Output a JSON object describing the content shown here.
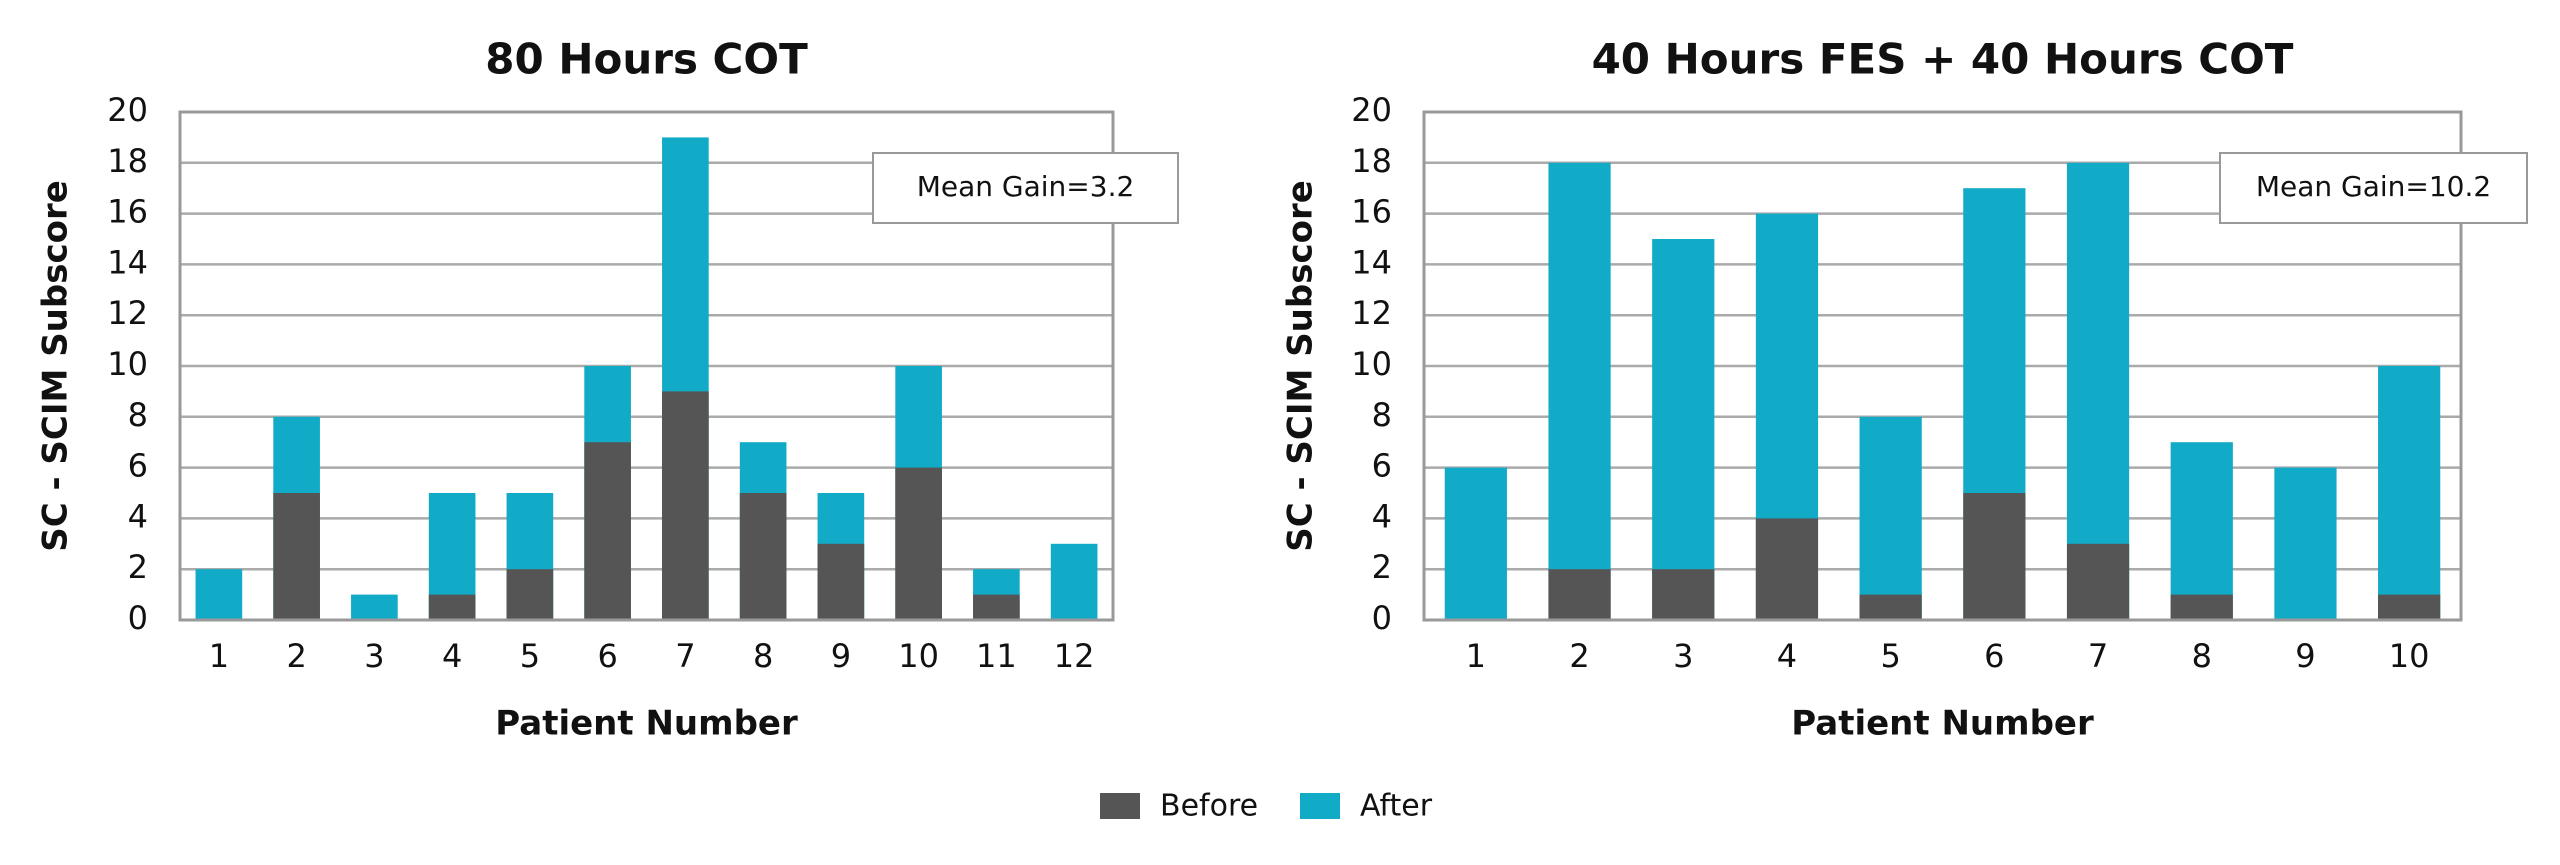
{
  "chart_data": [
    {
      "type": "bar",
      "title": "80 Hours COT",
      "x_label": "Patient Number",
      "y_label": "SC - SCIM Subscore",
      "annotation": "Mean Gain=3.2",
      "categories": [
        "1",
        "2",
        "3",
        "4",
        "5",
        "6",
        "7",
        "8",
        "9",
        "10",
        "11",
        "12"
      ],
      "series": [
        {
          "name": "Before",
          "color": "#555555",
          "values": [
            0,
            5,
            0,
            1,
            2,
            7,
            9,
            5,
            3,
            6,
            1,
            0
          ]
        },
        {
          "name": "After",
          "color": "#12abc7",
          "values": [
            2,
            8,
            1,
            5,
            5,
            10,
            19,
            7,
            5,
            10,
            2,
            3
          ]
        }
      ],
      "ylim": [
        0,
        20
      ],
      "yticks": [
        0,
        2,
        4,
        6,
        8,
        10,
        12,
        14,
        16,
        18,
        20
      ],
      "grid": true
    },
    {
      "type": "bar",
      "title": "40 Hours FES + 40 Hours COT",
      "x_label": "Patient Number",
      "y_label": "SC - SCIM Subscore",
      "annotation": "Mean Gain=10.2",
      "categories": [
        "1",
        "2",
        "3",
        "4",
        "5",
        "6",
        "7",
        "8",
        "9",
        "10"
      ],
      "series": [
        {
          "name": "Before",
          "color": "#555555",
          "values": [
            0,
            2,
            2,
            4,
            1,
            5,
            3,
            1,
            0,
            1
          ]
        },
        {
          "name": "After",
          "color": "#12abc7",
          "values": [
            6,
            18,
            15,
            16,
            8,
            17,
            18,
            7,
            6,
            10
          ]
        }
      ],
      "ylim": [
        0,
        20
      ],
      "yticks": [
        0,
        2,
        4,
        6,
        8,
        10,
        12,
        14,
        16,
        18,
        20
      ],
      "grid": true
    }
  ]
}
